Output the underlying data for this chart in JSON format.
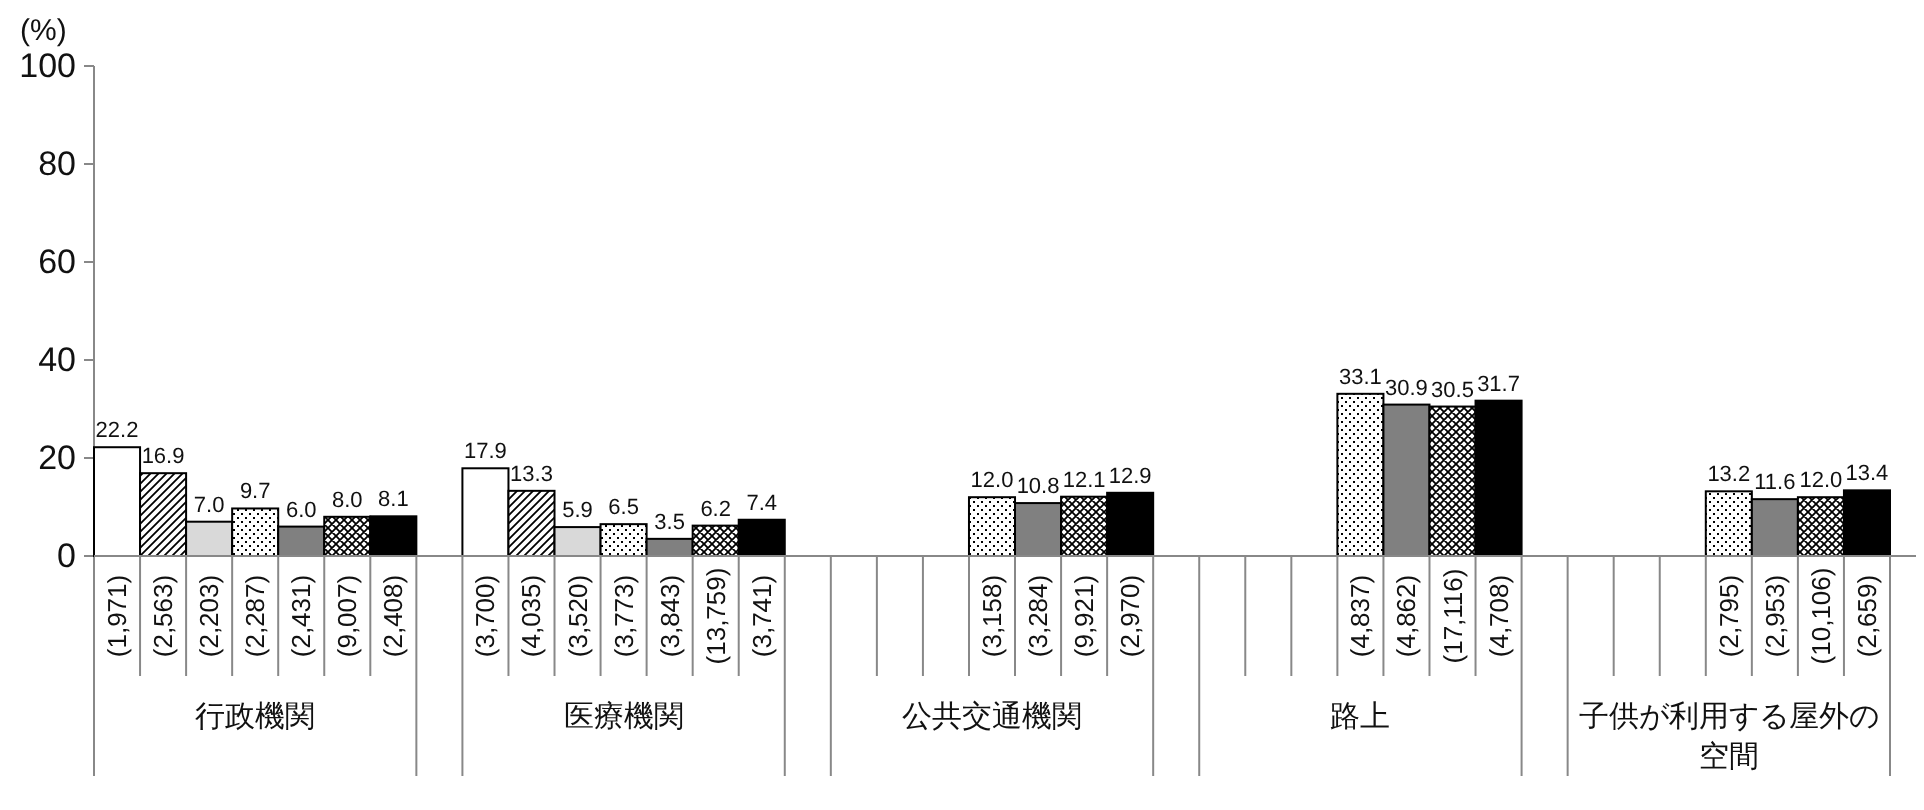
{
  "chart_data": {
    "type": "bar",
    "ylabel": "(%)",
    "categories": [
      "行政機関",
      "医療機関",
      "公共交通機関",
      "路上",
      "子供が利用する屋外の空間"
    ],
    "series": [
      {
        "color": "#ffffff",
        "values": [
          22.2,
          17.9,
          null,
          null,
          null
        ],
        "value_labels": [
          "22.2",
          "17.9",
          null,
          null,
          null
        ]
      },
      {
        "color": "#000000",
        "values": [
          16.9,
          13.3,
          null,
          null,
          null
        ],
        "value_labels": [
          "16.9",
          "13.3",
          null,
          null,
          null
        ]
      },
      {
        "color": "#d9d9d9",
        "values": [
          7.0,
          5.9,
          null,
          null,
          null
        ],
        "value_labels": [
          "7.0",
          "5.9",
          null,
          null,
          null
        ]
      },
      {
        "color": "#000000",
        "values": [
          9.7,
          6.5,
          12.0,
          33.1,
          13.2
        ],
        "value_labels": [
          "9.7",
          "6.5",
          "12.0",
          "33.1",
          "13.2"
        ]
      },
      {
        "color": "#808080",
        "values": [
          6.0,
          3.5,
          10.8,
          30.9,
          11.6
        ],
        "value_labels": [
          "6.0",
          "3.5",
          "10.8",
          "30.9",
          "11.6"
        ]
      },
      {
        "color": "#000000",
        "values": [
          8.0,
          6.2,
          12.1,
          30.5,
          12.0
        ],
        "value_labels": [
          "8.0",
          "6.2",
          "12.1",
          "30.5",
          "12.0"
        ]
      },
      {
        "color": "#000000",
        "values": [
          8.1,
          7.4,
          12.9,
          31.7,
          13.4
        ],
        "value_labels": [
          "8.1",
          "7.4",
          "12.9",
          "31.7",
          "13.4"
        ]
      }
    ],
    "ylim": [
      0,
      100
    ],
    "yticks": [
      0,
      20,
      40,
      60,
      80,
      100
    ],
    "annotations": [
      "(1,971)",
      "(2,563)",
      "(2,203)",
      "(2,287)",
      "(2,431)",
      "(9,007)",
      "(2,408)",
      "(3,700)",
      "(4,035)",
      "(3,520)",
      "(3,773)",
      "(3,843)",
      "(13,759)",
      "(3,741)",
      "(3,158)",
      "(3,284)",
      "(9,921)",
      "(2,970)",
      "(4,837)",
      "(4,862)",
      "(17,116)",
      "(4,708)",
      "(2,795)",
      "(2,953)",
      "(10,106)",
      "(2,659)"
    ]
  }
}
